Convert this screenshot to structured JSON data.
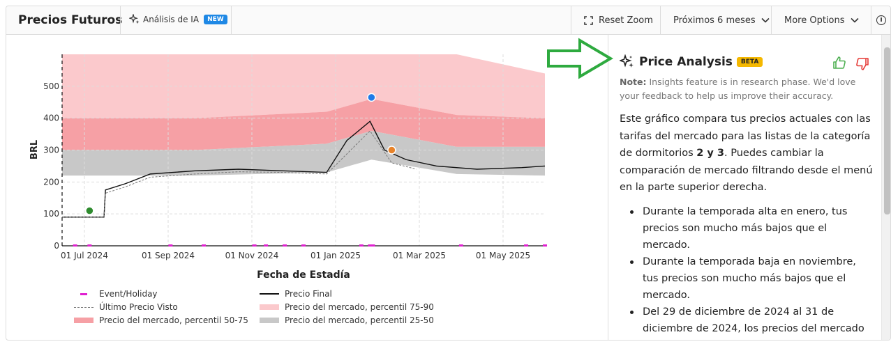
{
  "toolbar": {
    "title": "Precios Futuros",
    "ai_label": "Análisis de IA",
    "ai_badge": "NEW",
    "reset_zoom": "Reset Zoom",
    "range": "Próximos 6 meses",
    "more_options": "More Options",
    "info": "i"
  },
  "chart_data": {
    "type": "line",
    "ylabel": "BRL",
    "xlabel": "Fecha de Estadía",
    "x_ticks": [
      "01 Jul 2024",
      "01 Sep 2024",
      "01 Nov 2024",
      "01 Jan 2025",
      "01 Mar 2025",
      "01 May 2025"
    ],
    "y_ticks": [
      0,
      100,
      200,
      300,
      400,
      500
    ],
    "ylim": [
      0,
      600
    ],
    "x_range": [
      "2024-06-01",
      "2025-05-01"
    ],
    "series": [
      {
        "name": "Precio Final",
        "x": [
          "2024-06-01",
          "2024-06-30",
          "2024-07-01",
          "2024-07-15",
          "2024-08-01",
          "2024-09-01",
          "2024-10-01",
          "2024-11-01",
          "2024-12-01",
          "2024-12-15",
          "2024-12-31",
          "2025-01-10",
          "2025-01-25",
          "2025-02-15",
          "2025-03-15",
          "2025-04-15",
          "2025-05-01"
        ],
        "y": [
          90,
          90,
          175,
          195,
          225,
          235,
          240,
          235,
          230,
          330,
          390,
          300,
          270,
          250,
          240,
          245,
          250
        ]
      },
      {
        "name": "Último Precio Visto",
        "x": [
          "2024-06-01",
          "2024-06-30",
          "2024-07-01",
          "2024-07-15",
          "2024-08-01",
          "2024-09-01",
          "2024-10-01",
          "2024-11-01",
          "2024-12-01",
          "2024-12-31",
          "2025-01-15",
          "2025-02-01"
        ],
        "y": [
          90,
          90,
          165,
          185,
          215,
          225,
          232,
          230,
          225,
          360,
          260,
          240
        ]
      },
      {
        "name": "Precio del mercado, percentil 75-90",
        "x": [
          "2024-06-01",
          "2024-09-01",
          "2024-12-01",
          "2025-01-01",
          "2025-03-01",
          "2025-05-01"
        ],
        "y_low": [
          400,
          400,
          420,
          460,
          410,
          400
        ],
        "y_high": [
          600,
          600,
          600,
          600,
          600,
          540
        ]
      },
      {
        "name": "Precio del mercado, percentil 50-75",
        "x": [
          "2024-06-01",
          "2024-09-01",
          "2024-12-01",
          "2025-01-01",
          "2025-03-01",
          "2025-05-01"
        ],
        "y_low": [
          300,
          300,
          320,
          360,
          310,
          310
        ],
        "y_high": [
          400,
          400,
          420,
          460,
          410,
          400
        ]
      },
      {
        "name": "Precio del mercado, percentil 25-50",
        "x": [
          "2024-06-01",
          "2024-09-01",
          "2024-12-01",
          "2025-01-01",
          "2025-03-01",
          "2025-05-01"
        ],
        "y_low": [
          220,
          220,
          230,
          270,
          225,
          220
        ],
        "y_high": [
          300,
          300,
          320,
          360,
          310,
          310
        ]
      }
    ],
    "markers": [
      {
        "color": "#2e8b2e",
        "x": "2024-06-20",
        "y": 110
      },
      {
        "color": "#1e7be8",
        "x": "2025-01-01",
        "y": 465
      },
      {
        "color": "#e8832a",
        "x": "2025-01-15",
        "y": 300
      }
    ],
    "events": [
      "2024-06-10",
      "2024-06-20",
      "2024-08-15",
      "2024-09-07",
      "2024-10-12",
      "2024-10-20",
      "2024-11-02",
      "2024-11-15",
      "2024-12-25",
      "2024-12-31",
      "2025-01-02",
      "2025-03-04",
      "2025-04-18",
      "2025-05-01"
    ],
    "legend": [
      {
        "label": "Event/Holiday",
        "style": "event",
        "color": "#e020d0"
      },
      {
        "label": "Precio Final",
        "style": "line",
        "color": "#111111"
      },
      {
        "label": "Último Precio Visto",
        "style": "dashed",
        "color": "#777777"
      },
      {
        "label": "Precio del mercado, percentil 75-90",
        "style": "band",
        "color": "#fbc9cc"
      },
      {
        "label": "Precio del mercado, percentil 50-75",
        "style": "band",
        "color": "#f6a0a5"
      },
      {
        "label": "Precio del mercado, percentil 25-50",
        "style": "band",
        "color": "#c8c8c8"
      }
    ]
  },
  "panel": {
    "title": "Price Analysis",
    "badge": "BETA",
    "note_label": "Note:",
    "note_text": "Insights feature is in research phase. We'd love your feedback to help us improve their accuracy.",
    "intro_1": "Este gráfico compara tus precios actuales con las tarifas del mercado para las listas de la categoría de dormitorios ",
    "intro_bold": "2 y 3",
    "intro_2": ". Puedes cambiar la comparación de mercado filtrando desde el menú en la parte superior derecha.",
    "bullets": [
      "Durante la temporada alta en enero, tus precios son mucho más bajos que el mercado.",
      "Durante la temporada baja en noviembre, tus precios son mucho más bajos que el mercado.",
      "Del 29 de diciembre de 2024 al 31 de diciembre de 2024, los precios del mercado"
    ]
  }
}
